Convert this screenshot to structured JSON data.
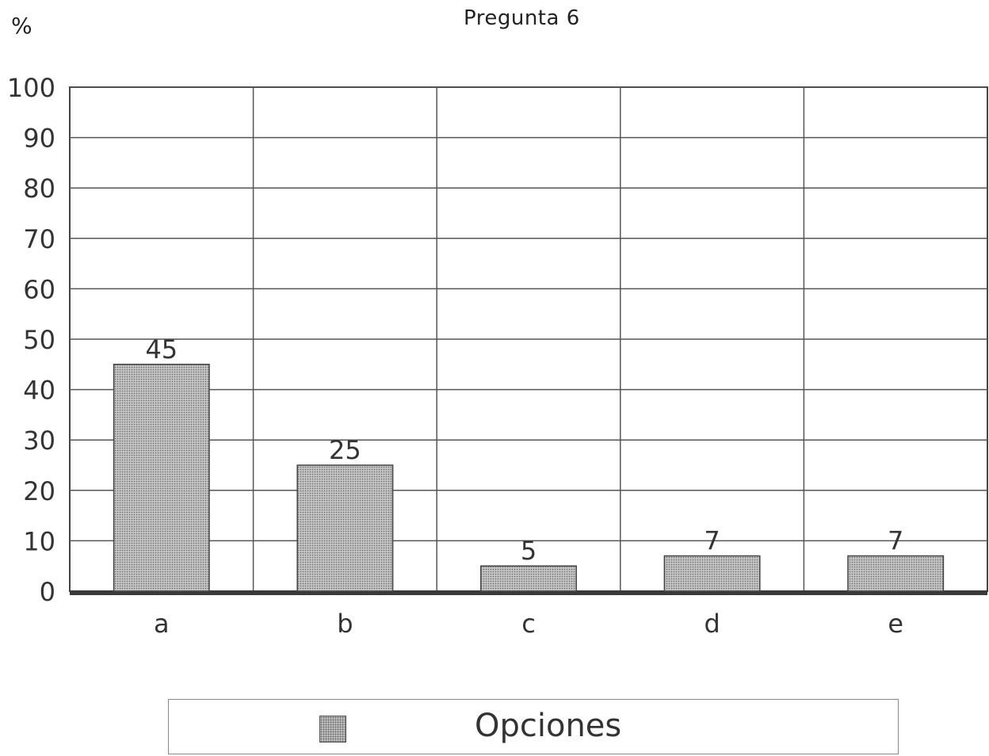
{
  "chart_data": {
    "type": "bar",
    "title": "Pregunta 6",
    "ylabel": "%",
    "xlabel": "",
    "categories": [
      "a",
      "b",
      "c",
      "d",
      "e"
    ],
    "series": [
      {
        "name": "Opciones",
        "values": [
          45,
          25,
          5,
          7,
          7
        ]
      }
    ],
    "data_labels": [
      "45",
      "25",
      "5",
      "7",
      "7"
    ],
    "ylim": [
      0,
      100
    ],
    "yticks": [
      "0",
      "10",
      "20",
      "30",
      "40",
      "50",
      "60",
      "70",
      "80",
      "90",
      "100"
    ],
    "grid": true,
    "legend": "bottom",
    "bar_color": "#bdbdbd"
  }
}
